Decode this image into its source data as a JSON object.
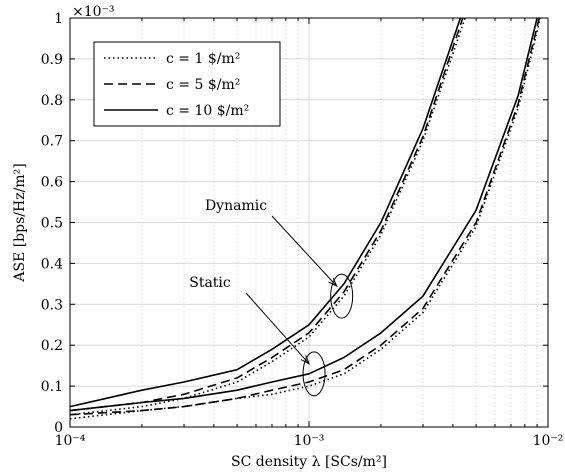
{
  "chart_data": {
    "type": "line",
    "title": "",
    "xlabel": "SC density λ [SCs/m²]",
    "ylabel": "ASE [bps/Hz/m²]",
    "x_scale": "log",
    "xlim": [
      0.0001,
      0.01
    ],
    "ylim": [
      0,
      0.001
    ],
    "y_multiplier_label": "×10⁻³",
    "x_tick_labels": [
      "10⁻⁴",
      "10⁻³",
      "10⁻²"
    ],
    "y_tick_labels": [
      "0",
      "0.1",
      "0.2",
      "0.3",
      "0.4",
      "0.5",
      "0.6",
      "0.7",
      "0.8",
      "0.9",
      "1"
    ],
    "grid": true,
    "legend_position": "top-left",
    "legend": [
      {
        "label": "c = 1 $/m²",
        "style": "dotted"
      },
      {
        "label": "c = 5 $/m²",
        "style": "dashed"
      },
      {
        "label": "c = 10 $/m²",
        "style": "solid"
      }
    ],
    "series": [
      {
        "name": "c = 1 $/m²",
        "group": "Dynamic",
        "style": "dotted",
        "x": [
          0.0001,
          0.0002,
          0.0003,
          0.0005,
          0.0007,
          0.001,
          0.0014,
          0.002,
          0.003,
          0.0045
        ],
        "y": [
          3e-05,
          5e-05,
          7e-05,
          0.00011,
          0.00016,
          0.00022,
          0.00032,
          0.00047,
          0.0007,
          0.001
        ]
      },
      {
        "name": "c = 5 $/m²",
        "group": "Dynamic",
        "style": "dashed",
        "x": [
          0.0001,
          0.0002,
          0.0003,
          0.0005,
          0.0007,
          0.001,
          0.0014,
          0.002,
          0.003,
          0.0044
        ],
        "y": [
          4e-05,
          6e-05,
          8e-05,
          0.00012,
          0.00017,
          0.00023,
          0.00033,
          0.00048,
          0.00071,
          0.001
        ]
      },
      {
        "name": "c = 10 $/m²",
        "group": "Dynamic",
        "style": "solid",
        "x": [
          0.0001,
          0.0002,
          0.0003,
          0.0005,
          0.0007,
          0.001,
          0.0014,
          0.002,
          0.003,
          0.0043
        ],
        "y": [
          5e-05,
          9e-05,
          0.00011,
          0.00014,
          0.00019,
          0.00025,
          0.00035,
          0.0005,
          0.00073,
          0.001
        ]
      },
      {
        "name": "c = 1 $/m²",
        "group": "Static",
        "style": "dotted",
        "x": [
          0.0001,
          0.0002,
          0.0003,
          0.0005,
          0.0007,
          0.001,
          0.0014,
          0.002,
          0.003,
          0.005,
          0.0075,
          0.0093
        ],
        "y": [
          2e-05,
          4e-05,
          5e-05,
          7e-05,
          8e-05,
          0.0001,
          0.00013,
          0.00019,
          0.00028,
          0.00049,
          0.00078,
          0.001
        ]
      },
      {
        "name": "c = 5 $/m²",
        "group": "Static",
        "style": "dashed",
        "x": [
          0.0001,
          0.0002,
          0.0003,
          0.0005,
          0.0007,
          0.001,
          0.0014,
          0.002,
          0.003,
          0.005,
          0.0075,
          0.0092
        ],
        "y": [
          3e-05,
          4e-05,
          5e-05,
          7e-05,
          9e-05,
          0.00011,
          0.00014,
          0.0002,
          0.00029,
          0.0005,
          0.00079,
          0.001
        ]
      },
      {
        "name": "c = 10 $/m²",
        "group": "Static",
        "style": "solid",
        "x": [
          0.0001,
          0.0002,
          0.0003,
          0.0005,
          0.0007,
          0.001,
          0.0014,
          0.002,
          0.003,
          0.005,
          0.0075,
          0.009
        ],
        "y": [
          4e-05,
          6e-05,
          7e-05,
          9e-05,
          0.00011,
          0.00013,
          0.00017,
          0.00023,
          0.00032,
          0.00053,
          0.00081,
          0.001
        ]
      }
    ],
    "annotations": [
      {
        "text": "Dynamic",
        "target_x": 0.00137,
        "target_y": 0.00032
      },
      {
        "text": "Static",
        "target_x": 0.00105,
        "target_y": 0.00013
      }
    ]
  }
}
